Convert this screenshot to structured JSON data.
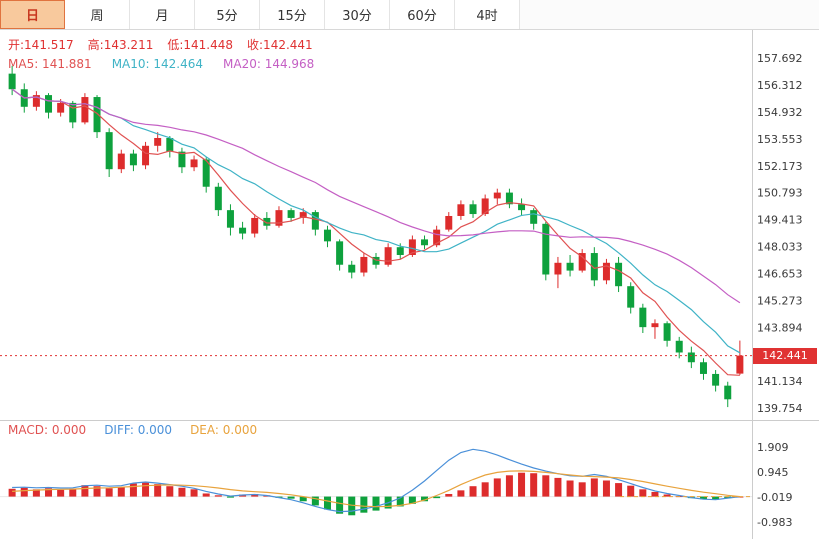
{
  "toolbar": {
    "tabs": [
      {
        "label": "日",
        "active": true
      },
      {
        "label": "周",
        "active": false
      },
      {
        "label": "月",
        "active": false
      },
      {
        "label": "5分",
        "active": false
      },
      {
        "label": "15分",
        "active": false
      },
      {
        "label": "30分",
        "active": false
      },
      {
        "label": "60分",
        "active": false
      },
      {
        "label": "4时",
        "active": false
      }
    ]
  },
  "quote": {
    "open": "开:141.517",
    "high": "高:143.211",
    "low": "低:141.448",
    "close": "收:142.441"
  },
  "ma_labels": {
    "ma5": "MA5: 141.881",
    "ma10": "MA10: 142.464",
    "ma20": "MA20: 144.968"
  },
  "macd_labels": {
    "macd": "MACD: 0.000",
    "diff": "DIFF: 0.000",
    "dea": "DEA: 0.000"
  },
  "price_badge": "142.441",
  "colors": {
    "up": "#dd2c2c",
    "down": "#0ea13d",
    "ma5": "#e05252",
    "ma10": "#3fb3c6",
    "ma20": "#c45fc4",
    "diff_line": "#4a90d9",
    "dea_line": "#e8a33d",
    "badge_bg": "#e03232",
    "axis_text": "#3a3a3a",
    "border": "#cccccc",
    "zero_line": "#e8e8e8"
  },
  "chart_data": [
    {
      "type": "candlestick",
      "columns": [
        "open",
        "high",
        "low",
        "close"
      ],
      "ylim": [
        139.138,
        159.138
      ],
      "yticks": [
        157.692,
        156.312,
        154.932,
        153.553,
        152.173,
        150.793,
        149.413,
        148.033,
        146.653,
        145.273,
        143.894,
        141.134,
        139.754
      ],
      "current_price": 142.441,
      "ma_periods": [
        5,
        10,
        20
      ],
      "candles": [
        [
          156.9,
          157.3,
          155.8,
          156.1
        ],
        [
          156.1,
          156.4,
          154.9,
          155.2
        ],
        [
          155.2,
          156.0,
          155.0,
          155.8
        ],
        [
          155.8,
          155.9,
          154.6,
          154.9
        ],
        [
          154.9,
          155.6,
          154.7,
          155.4
        ],
        [
          155.4,
          155.5,
          154.1,
          154.4
        ],
        [
          154.4,
          155.9,
          154.3,
          155.7
        ],
        [
          155.7,
          155.8,
          153.6,
          153.9
        ],
        [
          153.9,
          154.1,
          151.6,
          152.0
        ],
        [
          152.0,
          153.0,
          151.8,
          152.8
        ],
        [
          152.8,
          153.0,
          151.9,
          152.2
        ],
        [
          152.2,
          153.4,
          152.0,
          153.2
        ],
        [
          153.2,
          153.9,
          152.9,
          153.6
        ],
        [
          153.6,
          153.7,
          152.6,
          152.9
        ],
        [
          152.9,
          153.1,
          151.8,
          152.1
        ],
        [
          152.1,
          152.7,
          151.9,
          152.5
        ],
        [
          152.5,
          152.6,
          150.8,
          151.1
        ],
        [
          151.1,
          151.3,
          149.6,
          149.9
        ],
        [
          149.9,
          150.2,
          148.6,
          149.0
        ],
        [
          149.0,
          149.3,
          148.4,
          148.7
        ],
        [
          148.7,
          149.7,
          148.5,
          149.5
        ],
        [
          149.5,
          149.8,
          148.9,
          149.1
        ],
        [
          149.1,
          150.1,
          149.0,
          149.9
        ],
        [
          149.9,
          150.0,
          149.3,
          149.5
        ],
        [
          149.5,
          150.0,
          149.2,
          149.8
        ],
        [
          149.8,
          149.9,
          148.6,
          148.9
        ],
        [
          148.9,
          149.1,
          148.0,
          148.3
        ],
        [
          148.3,
          148.4,
          146.8,
          147.1
        ],
        [
          147.1,
          147.3,
          146.4,
          146.7
        ],
        [
          146.7,
          147.7,
          146.5,
          147.5
        ],
        [
          147.5,
          147.7,
          146.9,
          147.1
        ],
        [
          147.1,
          148.2,
          147.0,
          148.0
        ],
        [
          148.0,
          148.2,
          147.4,
          147.6
        ],
        [
          147.6,
          148.6,
          147.5,
          148.4
        ],
        [
          148.4,
          148.6,
          147.9,
          148.1
        ],
        [
          148.1,
          149.1,
          148.0,
          148.9
        ],
        [
          148.9,
          149.8,
          148.8,
          149.6
        ],
        [
          149.6,
          150.4,
          149.4,
          150.2
        ],
        [
          150.2,
          150.4,
          149.5,
          149.7
        ],
        [
          149.7,
          150.7,
          149.6,
          150.5
        ],
        [
          150.5,
          151.0,
          150.2,
          150.8
        ],
        [
          150.8,
          151.0,
          150.0,
          150.2
        ],
        [
          150.2,
          150.5,
          149.6,
          149.9
        ],
        [
          149.9,
          150.0,
          148.9,
          149.2
        ],
        [
          149.2,
          149.3,
          146.3,
          146.6
        ],
        [
          146.6,
          147.5,
          145.9,
          147.2
        ],
        [
          147.2,
          147.6,
          146.5,
          146.8
        ],
        [
          146.8,
          147.9,
          146.7,
          147.7
        ],
        [
          147.7,
          148.0,
          146.0,
          146.3
        ],
        [
          146.3,
          147.4,
          146.1,
          147.2
        ],
        [
          147.2,
          147.5,
          145.7,
          146.0
        ],
        [
          146.0,
          146.2,
          144.6,
          144.9
        ],
        [
          144.9,
          145.1,
          143.6,
          143.9
        ],
        [
          143.9,
          144.3,
          143.3,
          144.1
        ],
        [
          144.1,
          144.2,
          142.9,
          143.2
        ],
        [
          143.2,
          143.4,
          142.3,
          142.6
        ],
        [
          142.6,
          142.9,
          141.8,
          142.1
        ],
        [
          142.1,
          142.3,
          141.2,
          141.5
        ],
        [
          141.5,
          141.7,
          140.6,
          140.9
        ],
        [
          140.9,
          141.1,
          139.8,
          140.2
        ],
        [
          141.517,
          143.211,
          141.448,
          142.441
        ]
      ]
    },
    {
      "type": "macd",
      "ylim": [
        -1.48,
        2.18
      ],
      "yticks": [
        1.909,
        0.945,
        -0.019,
        -0.983
      ],
      "histogram": [
        0.3,
        0.34,
        0.28,
        0.32,
        0.26,
        0.3,
        0.44,
        0.4,
        0.32,
        0.36,
        0.5,
        0.54,
        0.48,
        0.4,
        0.34,
        0.28,
        0.12,
        0.05,
        -0.04,
        0.08,
        0.1,
        0.05,
        -0.05,
        -0.08,
        -0.18,
        -0.34,
        -0.5,
        -0.66,
        -0.72,
        -0.62,
        -0.54,
        -0.46,
        -0.38,
        -0.28,
        -0.18,
        -0.06,
        0.1,
        0.24,
        0.4,
        0.55,
        0.7,
        0.82,
        0.92,
        0.9,
        0.82,
        0.72,
        0.62,
        0.55,
        0.7,
        0.62,
        0.52,
        0.42,
        0.28,
        0.18,
        0.08,
        0.02,
        -0.06,
        -0.1,
        -0.12,
        -0.06,
        0.0
      ],
      "diff": [
        0.35,
        0.36,
        0.34,
        0.35,
        0.33,
        0.34,
        0.42,
        0.44,
        0.4,
        0.42,
        0.52,
        0.56,
        0.52,
        0.46,
        0.4,
        0.32,
        0.2,
        0.1,
        0.02,
        0.06,
        0.08,
        0.04,
        -0.04,
        -0.12,
        -0.24,
        -0.38,
        -0.5,
        -0.58,
        -0.56,
        -0.48,
        -0.38,
        -0.24,
        -0.05,
        0.25,
        0.6,
        1.0,
        1.4,
        1.7,
        1.82,
        1.75,
        1.6,
        1.42,
        1.25,
        1.1,
        0.98,
        0.88,
        0.8,
        0.78,
        0.85,
        0.78,
        0.65,
        0.5,
        0.35,
        0.22,
        0.12,
        0.04,
        -0.04,
        -0.1,
        -0.12,
        -0.06,
        0.0
      ],
      "dea": [
        0.2,
        0.23,
        0.25,
        0.27,
        0.28,
        0.29,
        0.31,
        0.33,
        0.34,
        0.36,
        0.39,
        0.42,
        0.44,
        0.45,
        0.44,
        0.42,
        0.38,
        0.33,
        0.27,
        0.22,
        0.19,
        0.16,
        0.12,
        0.07,
        0.0,
        -0.08,
        -0.17,
        -0.26,
        -0.33,
        -0.37,
        -0.39,
        -0.38,
        -0.34,
        -0.26,
        -0.13,
        0.04,
        0.24,
        0.46,
        0.66,
        0.83,
        0.93,
        0.98,
        0.99,
        0.97,
        0.93,
        0.88,
        0.83,
        0.79,
        0.77,
        0.75,
        0.72,
        0.66,
        0.58,
        0.49,
        0.4,
        0.32,
        0.24,
        0.17,
        0.11,
        0.05,
        0.0
      ]
    }
  ]
}
